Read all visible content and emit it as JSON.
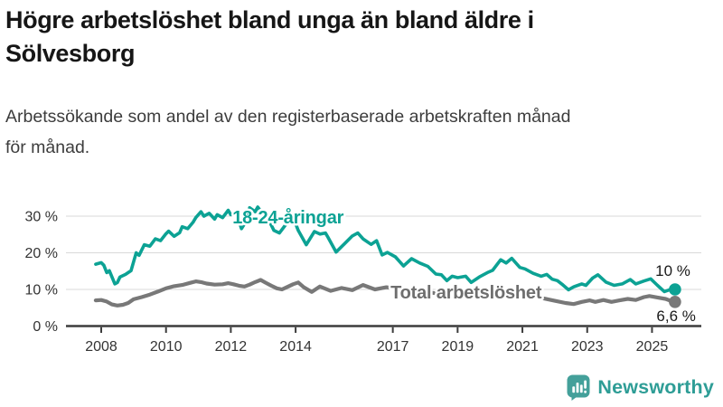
{
  "header": {
    "title": "Högre arbetslöshet bland unga än bland äldre i Sölvesborg",
    "title_line1": "Högre arbetslöshet bland unga än bland äldre i",
    "title_line2": "Sölvesborg",
    "subtitle": "Arbetssökande som andel av den registerbaserade arbetskraften månad för månad.",
    "subtitle_line1": "Arbetssökande som andel av den registerbaserade arbetskraften månad",
    "subtitle_line2": "för månad."
  },
  "footer": {
    "brand": "Newsworthy",
    "logo_icon": "newsworthy-speech-bubble-bar-chart-icon",
    "brand_color": "#2E9D96"
  },
  "chart_data": {
    "type": "line",
    "unit": "%",
    "x_ticks": [
      2008,
      2010,
      2012,
      2014,
      2017,
      2019,
      2021,
      2023,
      2025
    ],
    "x_tick_labels": [
      "2008",
      "2010",
      "2012",
      "2014",
      "2017",
      "2019",
      "2021",
      "2023",
      "2025"
    ],
    "y_ticks": [
      0,
      10,
      20,
      30
    ],
    "y_tick_labels": [
      "0 %",
      "10 %",
      "20 %",
      "30 %"
    ],
    "y_gridlines": [
      10,
      20,
      30
    ],
    "xlim": [
      2007.7,
      2026.4
    ],
    "ylim": [
      0,
      34
    ],
    "grid": "horizontal",
    "legend_position": "inline-labels",
    "colors": {
      "grid": "#D9D9D9",
      "axis": "#3C3C3C",
      "tick_label": "#333333",
      "end_value_label": "#1A1A1A",
      "background": "#FFFFFF"
    },
    "series": [
      {
        "name": "18-24-åringar",
        "color": "#0CA294",
        "label_color": "#0CA294",
        "label_pos": {
          "x": 2012.05,
          "y": 28.0
        },
        "end_label": "10 %",
        "end_value": 10.0,
        "points": [
          [
            2007.83,
            16.9
          ],
          [
            2008.0,
            17.3
          ],
          [
            2008.08,
            16.6
          ],
          [
            2008.17,
            14.6
          ],
          [
            2008.25,
            15.1
          ],
          [
            2008.42,
            11.5
          ],
          [
            2008.5,
            11.9
          ],
          [
            2008.58,
            13.4
          ],
          [
            2008.75,
            14.1
          ],
          [
            2008.92,
            15.1
          ],
          [
            2009.08,
            20.0
          ],
          [
            2009.17,
            19.3
          ],
          [
            2009.33,
            22.2
          ],
          [
            2009.5,
            21.8
          ],
          [
            2009.67,
            23.8
          ],
          [
            2009.83,
            23.3
          ],
          [
            2010.0,
            25.2
          ],
          [
            2010.08,
            25.9
          ],
          [
            2010.25,
            24.5
          ],
          [
            2010.42,
            25.5
          ],
          [
            2010.5,
            27.1
          ],
          [
            2010.67,
            26.6
          ],
          [
            2010.83,
            28.3
          ],
          [
            2010.92,
            29.6
          ],
          [
            2011.08,
            31.2
          ],
          [
            2011.17,
            30.0
          ],
          [
            2011.33,
            30.8
          ],
          [
            2011.5,
            29.2
          ],
          [
            2011.58,
            30.4
          ],
          [
            2011.75,
            29.6
          ],
          [
            2011.92,
            31.6
          ],
          [
            2012.0,
            30.4
          ],
          [
            2012.17,
            30.8
          ],
          [
            2012.33,
            26.6
          ],
          [
            2012.5,
            29.0
          ],
          [
            2012.58,
            32.3
          ],
          [
            2012.75,
            31.2
          ],
          [
            2012.83,
            32.5
          ],
          [
            2013.0,
            30.4
          ],
          [
            2013.17,
            29.0
          ],
          [
            2013.33,
            26.1
          ],
          [
            2013.5,
            25.4
          ],
          [
            2013.67,
            27.4
          ],
          [
            2013.83,
            29.3
          ],
          [
            2013.92,
            29.8
          ],
          [
            2014.08,
            26.1
          ],
          [
            2014.33,
            22.2
          ],
          [
            2014.58,
            25.8
          ],
          [
            2014.75,
            25.1
          ],
          [
            2014.92,
            25.4
          ],
          [
            2015.0,
            24.2
          ],
          [
            2015.25,
            20.2
          ],
          [
            2015.5,
            22.4
          ],
          [
            2015.75,
            24.6
          ],
          [
            2015.92,
            25.4
          ],
          [
            2016.08,
            23.8
          ],
          [
            2016.33,
            22.3
          ],
          [
            2016.5,
            23.3
          ],
          [
            2016.67,
            19.4
          ],
          [
            2016.83,
            20.1
          ],
          [
            2017.08,
            18.9
          ],
          [
            2017.33,
            16.4
          ],
          [
            2017.58,
            18.4
          ],
          [
            2017.83,
            17.2
          ],
          [
            2018.08,
            16.3
          ],
          [
            2018.33,
            14.2
          ],
          [
            2018.5,
            14.0
          ],
          [
            2018.67,
            12.4
          ],
          [
            2018.83,
            13.6
          ],
          [
            2019.0,
            13.2
          ],
          [
            2019.25,
            13.6
          ],
          [
            2019.42,
            11.9
          ],
          [
            2019.67,
            13.4
          ],
          [
            2019.92,
            14.6
          ],
          [
            2020.08,
            15.2
          ],
          [
            2020.33,
            18.1
          ],
          [
            2020.5,
            17.2
          ],
          [
            2020.67,
            18.5
          ],
          [
            2020.92,
            16.0
          ],
          [
            2021.08,
            15.6
          ],
          [
            2021.33,
            14.4
          ],
          [
            2021.58,
            13.6
          ],
          [
            2021.75,
            14.1
          ],
          [
            2021.92,
            12.8
          ],
          [
            2022.08,
            12.4
          ],
          [
            2022.25,
            11.2
          ],
          [
            2022.42,
            9.9
          ],
          [
            2022.58,
            10.7
          ],
          [
            2022.83,
            11.5
          ],
          [
            2022.96,
            11.1
          ],
          [
            2023.17,
            13.1
          ],
          [
            2023.33,
            14.0
          ],
          [
            2023.58,
            12.0
          ],
          [
            2023.83,
            11.1
          ],
          [
            2024.08,
            11.5
          ],
          [
            2024.33,
            12.7
          ],
          [
            2024.5,
            11.5
          ],
          [
            2024.75,
            12.3
          ],
          [
            2024.96,
            12.9
          ],
          [
            2025.17,
            11.1
          ],
          [
            2025.38,
            9.4
          ],
          [
            2025.54,
            9.9
          ],
          [
            2025.71,
            10.0
          ]
        ]
      },
      {
        "name": "Total arbetslöshet",
        "color": "#787878",
        "label_color": "#6E6E6E",
        "label_pos": {
          "x": 2016.93,
          "y": 7.55
        },
        "end_label": "6,6 %",
        "end_value": 6.6,
        "points": [
          [
            2007.83,
            7.0
          ],
          [
            2008.0,
            7.1
          ],
          [
            2008.17,
            6.7
          ],
          [
            2008.33,
            5.9
          ],
          [
            2008.5,
            5.6
          ],
          [
            2008.67,
            5.8
          ],
          [
            2008.83,
            6.3
          ],
          [
            2009.0,
            7.3
          ],
          [
            2009.25,
            7.9
          ],
          [
            2009.5,
            8.6
          ],
          [
            2009.75,
            9.4
          ],
          [
            2010.0,
            10.3
          ],
          [
            2010.25,
            10.9
          ],
          [
            2010.5,
            11.2
          ],
          [
            2010.75,
            11.8
          ],
          [
            2010.92,
            12.2
          ],
          [
            2011.08,
            12.0
          ],
          [
            2011.25,
            11.6
          ],
          [
            2011.5,
            11.3
          ],
          [
            2011.75,
            11.4
          ],
          [
            2011.92,
            11.7
          ],
          [
            2012.08,
            11.4
          ],
          [
            2012.25,
            11.0
          ],
          [
            2012.42,
            10.8
          ],
          [
            2012.58,
            11.3
          ],
          [
            2012.75,
            12.0
          ],
          [
            2012.92,
            12.6
          ],
          [
            2013.08,
            11.8
          ],
          [
            2013.25,
            11.0
          ],
          [
            2013.42,
            10.3
          ],
          [
            2013.58,
            10.0
          ],
          [
            2013.75,
            10.7
          ],
          [
            2013.92,
            11.4
          ],
          [
            2014.08,
            11.9
          ],
          [
            2014.25,
            10.6
          ],
          [
            2014.5,
            9.3
          ],
          [
            2014.75,
            10.8
          ],
          [
            2015.08,
            9.6
          ],
          [
            2015.42,
            10.4
          ],
          [
            2015.75,
            9.8
          ],
          [
            2016.08,
            11.2
          ],
          [
            2016.45,
            10.0
          ],
          [
            2016.8,
            10.6
          ],
          [
            2017.1,
            10.3
          ],
          [
            2017.5,
            9.8
          ],
          [
            2018.0,
            9.3
          ],
          [
            2018.5,
            8.8
          ],
          [
            2019.0,
            8.4
          ],
          [
            2019.5,
            8.1
          ],
          [
            2020.0,
            8.4
          ],
          [
            2020.42,
            9.2
          ],
          [
            2020.83,
            8.9
          ],
          [
            2021.25,
            8.2
          ],
          [
            2021.67,
            7.5
          ],
          [
            2022.0,
            6.9
          ],
          [
            2022.33,
            6.3
          ],
          [
            2022.58,
            6.0
          ],
          [
            2022.83,
            6.6
          ],
          [
            2023.08,
            7.0
          ],
          [
            2023.25,
            6.6
          ],
          [
            2023.5,
            7.1
          ],
          [
            2023.75,
            6.6
          ],
          [
            2024.0,
            7.0
          ],
          [
            2024.25,
            7.4
          ],
          [
            2024.5,
            7.1
          ],
          [
            2024.75,
            7.9
          ],
          [
            2024.92,
            8.2
          ],
          [
            2025.17,
            7.8
          ],
          [
            2025.42,
            7.4
          ],
          [
            2025.58,
            6.9
          ],
          [
            2025.71,
            6.6
          ]
        ]
      }
    ]
  }
}
